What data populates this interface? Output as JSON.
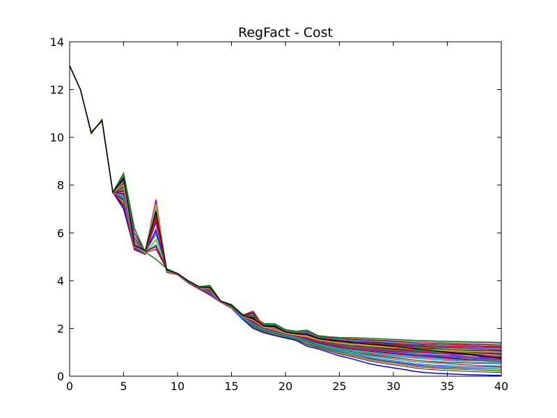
{
  "chart_data": {
    "type": "line",
    "title": "RegFact - Cost",
    "xlabel": "",
    "ylabel": "",
    "xlim": [
      0,
      40
    ],
    "ylim": [
      0,
      14
    ],
    "xticks": [
      0,
      5,
      10,
      15,
      20,
      25,
      30,
      35,
      40
    ],
    "yticks": [
      0,
      2,
      4,
      6,
      8,
      10,
      12,
      14
    ],
    "grid": false,
    "legend": "none",
    "series": [
      {
        "color": "#0000ff",
        "x": [
          0,
          1,
          2,
          3,
          4,
          5,
          6,
          7,
          8,
          9,
          10,
          11,
          12,
          13,
          14,
          15,
          16,
          17,
          18,
          19,
          20,
          21,
          22,
          23,
          24,
          25,
          26,
          27,
          28,
          29,
          30,
          31,
          32,
          33,
          34,
          35,
          36,
          37,
          38,
          39,
          40
        ],
        "values": [
          13.0,
          12.0,
          10.2,
          10.7,
          7.7,
          7.0,
          5.3,
          5.1,
          6.5,
          4.35,
          4.25,
          3.9,
          3.65,
          3.4,
          3.1,
          2.85,
          2.4,
          2.0,
          1.82,
          1.7,
          1.6,
          1.5,
          1.25,
          1.15,
          1.0,
          0.85,
          0.75,
          0.62,
          0.5,
          0.42,
          0.35,
          0.28,
          0.2,
          0.15,
          0.12,
          0.1,
          0.08,
          0.06,
          0.05,
          0.04,
          0.03
        ]
      },
      {
        "color": "#008000",
        "x": [
          0,
          1,
          2,
          3,
          4,
          5,
          6,
          7,
          8,
          9,
          10,
          11,
          12,
          13,
          14,
          15,
          16,
          17,
          18,
          19,
          20,
          21,
          22,
          23,
          24,
          25,
          26,
          27,
          28,
          29,
          30,
          31,
          32,
          33,
          34,
          35,
          36,
          37,
          38,
          39,
          40
        ],
        "values": [
          13.0,
          12.0,
          10.15,
          10.75,
          7.7,
          8.5,
          6.2,
          5.2,
          4.9,
          4.5,
          4.3,
          4.0,
          3.75,
          3.8,
          3.15,
          3.0,
          2.6,
          2.5,
          2.2,
          2.2,
          1.95,
          1.88,
          1.93,
          1.7,
          1.65,
          1.62,
          1.61,
          1.6,
          1.58,
          1.56,
          1.54,
          1.52,
          1.5,
          1.49,
          1.47,
          1.46,
          1.45,
          1.44,
          1.43,
          1.42,
          1.41
        ]
      },
      {
        "color": "#ff0000",
        "x": [
          0,
          1,
          2,
          3,
          4,
          5,
          6,
          7,
          8,
          9,
          10,
          11,
          12,
          13,
          14,
          15,
          16,
          17,
          18,
          19,
          20,
          21,
          22,
          23,
          24,
          25,
          26,
          27,
          28,
          29,
          30,
          31,
          32,
          33,
          34,
          35,
          36,
          37,
          38,
          39,
          40
        ],
        "values": [
          13.0,
          12.0,
          10.2,
          10.7,
          7.7,
          7.2,
          5.3,
          5.1,
          6.6,
          4.35,
          4.25,
          3.9,
          3.65,
          3.4,
          3.1,
          2.85,
          2.55,
          2.72,
          2.05,
          1.92,
          1.8,
          1.7,
          1.62,
          1.52,
          1.48,
          1.45,
          1.42,
          1.4,
          1.38,
          1.36,
          1.34,
          1.32,
          1.3,
          1.29,
          1.28,
          1.27,
          1.26,
          1.25,
          1.24,
          1.23,
          1.22
        ]
      },
      {
        "color": "#00bfbf",
        "x": [
          0,
          1,
          2,
          3,
          4,
          5,
          6,
          7,
          8,
          9,
          10,
          11,
          12,
          13,
          14,
          15,
          16,
          17,
          18,
          19,
          20,
          21,
          22,
          23,
          24,
          25,
          26,
          27,
          28,
          29,
          30,
          31,
          32,
          33,
          34,
          35,
          36,
          37,
          38,
          39,
          40
        ],
        "values": [
          13.0,
          12.0,
          10.2,
          10.7,
          7.7,
          7.5,
          5.4,
          5.15,
          7.0,
          4.38,
          4.27,
          3.93,
          3.7,
          3.5,
          3.12,
          2.88,
          2.45,
          2.2,
          1.95,
          1.85,
          1.72,
          1.62,
          1.5,
          1.35,
          1.25,
          1.15,
          1.08,
          1.02,
          0.96,
          0.9,
          0.85,
          0.8,
          0.76,
          0.72,
          0.69,
          0.66,
          0.63,
          0.6,
          0.58,
          0.56,
          0.54
        ]
      },
      {
        "color": "#bf00bf",
        "x": [
          0,
          1,
          2,
          3,
          4,
          5,
          6,
          7,
          8,
          9,
          10,
          11,
          12,
          13,
          14,
          15,
          16,
          17,
          18,
          19,
          20,
          21,
          22,
          23,
          24,
          25,
          26,
          27,
          28,
          29,
          30,
          31,
          32,
          33,
          34,
          35,
          36,
          37,
          38,
          39,
          40
        ],
        "values": [
          13.0,
          12.0,
          10.2,
          10.7,
          7.7,
          7.8,
          5.45,
          5.2,
          7.4,
          4.4,
          4.28,
          3.95,
          3.72,
          3.6,
          3.13,
          2.9,
          2.5,
          2.3,
          2.0,
          1.9,
          1.76,
          1.68,
          1.6,
          1.45,
          1.36,
          1.28,
          1.22,
          1.18,
          1.14,
          1.1,
          1.06,
          1.03,
          1.0,
          0.97,
          0.95,
          0.93,
          0.91,
          0.89,
          0.87,
          0.85,
          0.83
        ]
      },
      {
        "color": "#bfbf00",
        "x": [
          0,
          1,
          2,
          3,
          4,
          5,
          6,
          7,
          8,
          9,
          10,
          11,
          12,
          13,
          14,
          15,
          16,
          17,
          18,
          19,
          20,
          21,
          22,
          23,
          24,
          25,
          26,
          27,
          28,
          29,
          30,
          31,
          32,
          33,
          34,
          35,
          36,
          37,
          38,
          39,
          40
        ],
        "values": [
          13.0,
          12.0,
          10.2,
          10.7,
          7.7,
          8.0,
          5.5,
          5.2,
          7.2,
          4.42,
          4.29,
          3.97,
          3.73,
          3.65,
          3.14,
          2.92,
          2.52,
          2.35,
          2.05,
          1.95,
          1.8,
          1.72,
          1.66,
          1.52,
          1.45,
          1.38,
          1.33,
          1.3,
          1.26,
          1.23,
          1.2,
          1.17,
          1.14,
          1.12,
          1.1,
          1.08,
          1.06,
          1.04,
          1.03,
          1.02,
          1.0
        ]
      },
      {
        "color": "#000000",
        "x": [
          0,
          1,
          2,
          3,
          4,
          5,
          6,
          7,
          8,
          9,
          10,
          11,
          12,
          13,
          14,
          15,
          16,
          17,
          18,
          19,
          20,
          21,
          22,
          23,
          24,
          25,
          26,
          27,
          28,
          29,
          30,
          31,
          32,
          33,
          34,
          35,
          36,
          37,
          38,
          39,
          40
        ],
        "values": [
          13.0,
          12.0,
          10.2,
          10.7,
          7.7,
          8.3,
          5.5,
          5.25,
          6.9,
          4.45,
          4.3,
          3.98,
          3.74,
          3.7,
          3.15,
          2.95,
          2.55,
          2.4,
          2.1,
          2.1,
          1.85,
          1.78,
          1.75,
          1.58,
          1.52,
          1.47,
          1.42,
          1.38,
          1.34,
          1.3,
          1.25,
          1.2,
          1.15,
          1.1,
          1.05,
          1.0,
          0.95,
          0.9,
          0.85,
          0.8,
          0.75
        ]
      }
    ]
  },
  "palette": [
    "#0000ff",
    "#008000",
    "#ff0000",
    "#00bfbf",
    "#bf00bf",
    "#bfbf00",
    "#000000"
  ]
}
